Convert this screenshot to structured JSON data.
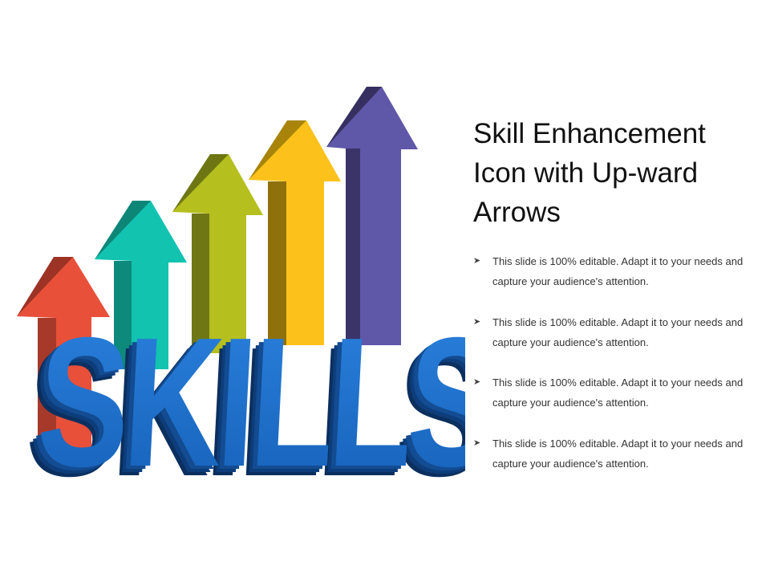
{
  "slide": {
    "title": "Skill Enhancement Icon with Up-ward Arrows",
    "graphic_text": "SKILLS",
    "bullet_icon": "arrowhead-bullet-icon",
    "bullets": [
      "This slide is 100% editable. Adapt it to your needs and capture your audience's attention.",
      "This slide is 100% editable. Adapt it to your needs and capture your audience's attention.",
      "This slide is 100% editable. Adapt it to your needs and capture your audience's attention.",
      "This slide is 100% editable. Adapt it to your needs and capture your audience's attention."
    ]
  },
  "colors": {
    "arrow_red": "#e8503a",
    "arrow_teal": "#12c3b0",
    "arrow_lime": "#b5bf1d",
    "arrow_yellow": "#fcc21b",
    "arrow_purple": "#5f57a8",
    "letters_blue": "#1a6fc9",
    "letters_dark": "#0d3d7a"
  }
}
